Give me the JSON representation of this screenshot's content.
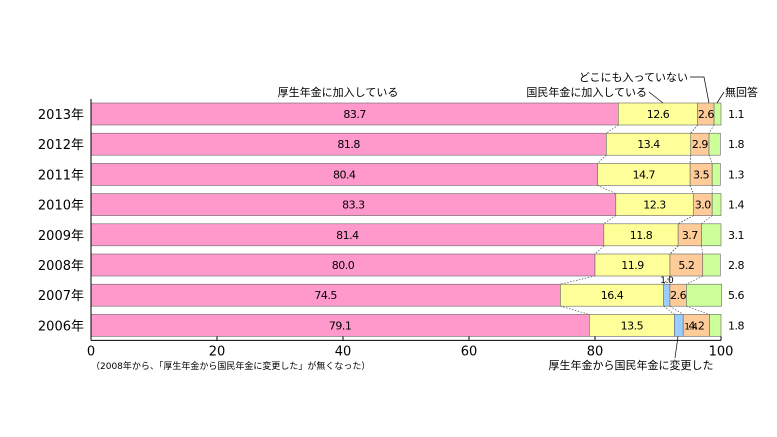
{
  "chart_data": {
    "type": "bar",
    "orientation": "horizontal",
    "stacked": true,
    "categories": [
      "2013年",
      "2012年",
      "2011年",
      "2010年",
      "2009年",
      "2008年",
      "2007年",
      "2006年"
    ],
    "series": [
      {
        "name": "厚生年金に加入している",
        "color": "#ff99cc",
        "values": [
          83.7,
          81.8,
          80.4,
          83.3,
          81.4,
          80.0,
          74.5,
          79.1
        ]
      },
      {
        "name": "国民年金に加入している",
        "color": "#ffff99",
        "values": [
          12.6,
          13.4,
          14.7,
          12.3,
          11.8,
          11.9,
          16.4,
          13.5
        ]
      },
      {
        "name": "厚生年金から国民年金に変更した",
        "color": "#99ccff",
        "values": [
          null,
          null,
          null,
          null,
          null,
          null,
          1.0,
          1.4
        ]
      },
      {
        "name": "どこにも入っていない",
        "color": "#ffcc99",
        "values": [
          2.6,
          2.9,
          3.5,
          3.0,
          3.7,
          5.2,
          2.6,
          4.2
        ]
      },
      {
        "name": "無回答",
        "color": "#ccff99",
        "values": [
          1.1,
          1.8,
          1.3,
          1.4,
          3.1,
          2.8,
          5.6,
          1.8
        ]
      }
    ],
    "xlim": [
      0,
      100
    ],
    "xticks": [
      0,
      20,
      40,
      60,
      80,
      100
    ],
    "note": "（2008年から、「厚生年金から国民年金に変更した」が無くなった）"
  },
  "colors": {
    "connector": "#555555",
    "bar_stroke": "#666666"
  }
}
